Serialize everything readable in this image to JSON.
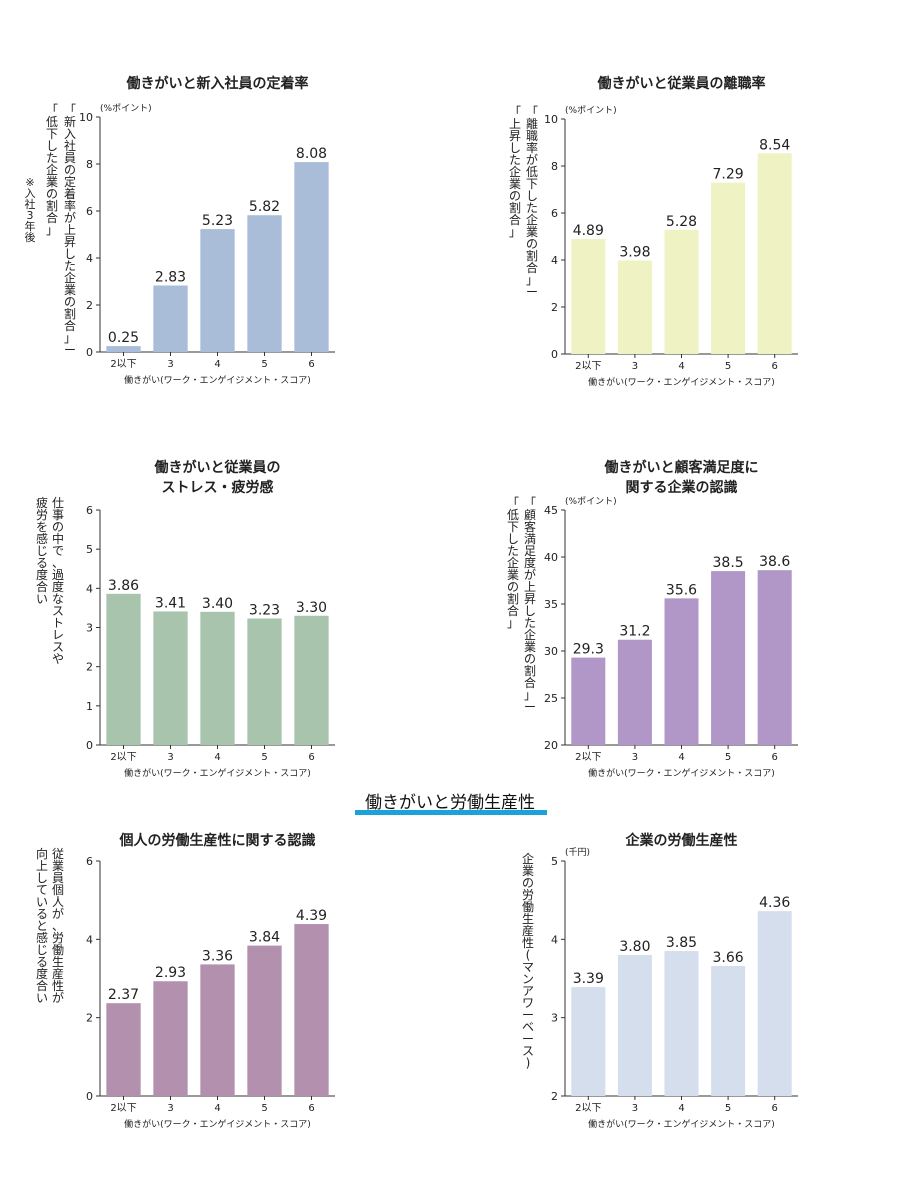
{
  "section": {
    "title": "働きがいと労働生産性"
  },
  "xlabel": "働きがい(ワーク・エンゲイジメント・スコア)",
  "categories": [
    "2以下",
    "3",
    "4",
    "5",
    "6"
  ],
  "chart_data": [
    {
      "id": "retention",
      "type": "bar",
      "title": [
        "働きがいと新入社員の定着率"
      ],
      "unit": "(%ポイント)",
      "ylabel_cols": [
        "「新入社員の定着率が上昇した企業の割合」ー",
        "「低下した企業の割合」"
      ],
      "note": "※入社3年後",
      "categories": [
        "2以下",
        "3",
        "4",
        "5",
        "6"
      ],
      "values": [
        0.25,
        2.83,
        5.23,
        5.82,
        8.08
      ],
      "value_labels": [
        "0.25",
        "2.83",
        "5.23",
        "5.82",
        "8.08"
      ],
      "ylim": [
        0,
        10
      ],
      "yticks": [
        "0",
        "2",
        "4",
        "6",
        "8",
        "10"
      ],
      "color": "#a9bcd8"
    },
    {
      "id": "turnover",
      "type": "bar",
      "title": [
        "働きがいと従業員の離職率"
      ],
      "unit": "(%ポイント)",
      "ylabel_cols": [
        "「離職率が低下した企業の割合」ー",
        "「上昇した企業の割合」"
      ],
      "categories": [
        "2以下",
        "3",
        "4",
        "5",
        "6"
      ],
      "values": [
        4.89,
        3.98,
        5.28,
        7.29,
        8.54
      ],
      "value_labels": [
        "4.89",
        "3.98",
        "5.28",
        "7.29",
        "8.54"
      ],
      "ylim": [
        0,
        10
      ],
      "yticks": [
        "0",
        "2",
        "4",
        "6",
        "8",
        "10"
      ],
      "color": "#eff2c3"
    },
    {
      "id": "stress",
      "type": "bar",
      "title": [
        "働きがいと従業員の",
        "ストレス・疲労感"
      ],
      "unit": "",
      "ylabel_cols": [
        "仕事の中で、過度なストレスや",
        "疲労を感じる度合い"
      ],
      "categories": [
        "2以下",
        "3",
        "4",
        "5",
        "6"
      ],
      "values": [
        3.86,
        3.41,
        3.4,
        3.23,
        3.3
      ],
      "value_labels": [
        "3.86",
        "3.41",
        "3.40",
        "3.23",
        "3.30"
      ],
      "ylim": [
        0,
        6
      ],
      "yticks": [
        "0",
        "1",
        "2",
        "3",
        "4",
        "5",
        "6"
      ],
      "color": "#a9c4ad"
    },
    {
      "id": "satisfaction",
      "type": "bar",
      "title": [
        "働きがいと顧客満足度に",
        "関する企業の認識"
      ],
      "unit": "(%ポイント)",
      "ylabel_cols": [
        "「顧客満足度が上昇した企業の割合」ー",
        "「低下した企業の割合」"
      ],
      "categories": [
        "2以下",
        "3",
        "4",
        "5",
        "6"
      ],
      "values": [
        29.3,
        31.2,
        35.6,
        38.5,
        38.6
      ],
      "value_labels": [
        "29.3",
        "31.2",
        "35.6",
        "38.5",
        "38.6"
      ],
      "ylim": [
        20,
        45
      ],
      "yticks": [
        "20",
        "25",
        "30",
        "35",
        "40",
        "45"
      ],
      "color": "#b097c8"
    },
    {
      "id": "personal",
      "type": "bar",
      "title": [
        "個人の労働生産性に関する認識"
      ],
      "unit": "",
      "ylabel_cols": [
        "従業員個人が、労働生産性が",
        "向上していると感じる度合い"
      ],
      "categories": [
        "2以下",
        "3",
        "4",
        "5",
        "6"
      ],
      "values": [
        2.37,
        2.93,
        3.36,
        3.84,
        4.39
      ],
      "value_labels": [
        "2.37",
        "2.93",
        "3.36",
        "3.84",
        "4.39"
      ],
      "ylim": [
        0,
        6
      ],
      "yticks": [
        "0",
        "2",
        "4",
        "6"
      ],
      "color": "#b290ae"
    },
    {
      "id": "corporate",
      "type": "bar",
      "title": [
        "企業の労働生産性"
      ],
      "unit": "(千円)",
      "ylabel_cols": [
        "企業の労働生産性(マンアワーベース)"
      ],
      "categories": [
        "2以下",
        "3",
        "4",
        "5",
        "6"
      ],
      "values": [
        3.39,
        3.8,
        3.85,
        3.66,
        4.36
      ],
      "value_labels": [
        "3.39",
        "3.80",
        "3.85",
        "3.66",
        "4.36"
      ],
      "ylim": [
        2,
        5
      ],
      "yticks": [
        "2",
        "3",
        "4",
        "5"
      ],
      "color": "#d4deec"
    }
  ]
}
